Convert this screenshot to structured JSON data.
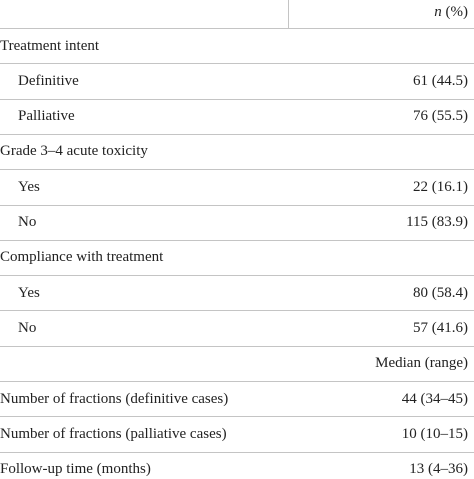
{
  "header": {
    "n": "n",
    "pct": "(%)"
  },
  "sections": [
    {
      "title": "Treatment intent",
      "rows": [
        {
          "label": "Definitive",
          "value": "61 (44.5)"
        },
        {
          "label": "Palliative",
          "value": "76 (55.5)"
        }
      ]
    },
    {
      "title": "Grade 3–4 acute toxicity",
      "rows": [
        {
          "label": "Yes",
          "value": "22 (16.1)"
        },
        {
          "label": "No",
          "value": "115 (83.9)"
        }
      ]
    },
    {
      "title": "Compliance with treatment",
      "rows": [
        {
          "label": "Yes",
          "value": "80 (58.4)"
        },
        {
          "label": "No",
          "value": "57 (41.6)"
        }
      ]
    }
  ],
  "median_header": "Median (range)",
  "median_rows": [
    {
      "label": "Number of fractions (definitive cases)",
      "value": "44 (34–45)"
    },
    {
      "label": "Number of fractions (palliative cases)",
      "value": "10 (10–15)"
    },
    {
      "label": "Follow-up time (months)",
      "value": "13 (4–36)"
    }
  ]
}
